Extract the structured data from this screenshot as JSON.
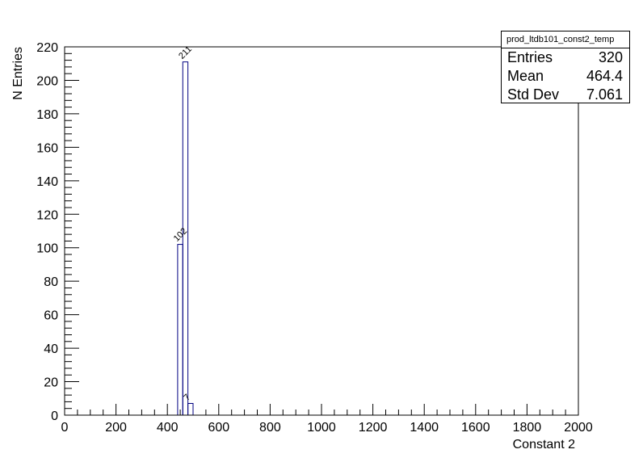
{
  "chart_data": {
    "type": "histogram",
    "title": "",
    "xlabel": "Constant 2",
    "ylabel": "N Entries",
    "xlim": [
      0,
      2000
    ],
    "ylim": [
      0,
      220
    ],
    "x_ticks": [
      0,
      200,
      400,
      600,
      800,
      1000,
      1200,
      1400,
      1600,
      1800,
      2000
    ],
    "y_ticks": [
      0,
      20,
      40,
      60,
      80,
      100,
      120,
      140,
      160,
      180,
      200,
      220
    ],
    "bin_width": 20,
    "bins": [
      {
        "x_low": 440,
        "x_high": 460,
        "value": 102,
        "label": "102"
      },
      {
        "x_low": 460,
        "x_high": 480,
        "value": 211,
        "label": "211"
      },
      {
        "x_low": 480,
        "x_high": 500,
        "value": 7,
        "label": "7"
      }
    ],
    "line_color": "#000080",
    "grid": false
  },
  "stats": {
    "name": "prod_ltdb101_const2_temp",
    "rows": [
      {
        "label": "Entries",
        "value": "320"
      },
      {
        "label": "Mean",
        "value": "464.4"
      },
      {
        "label": "Std Dev",
        "value": "7.061"
      }
    ]
  }
}
